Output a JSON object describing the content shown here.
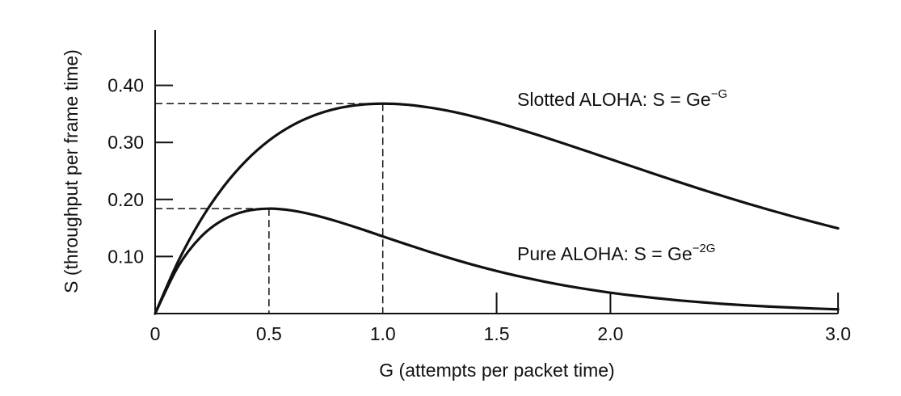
{
  "chart_data": {
    "type": "line",
    "title": "",
    "xlabel": "G (attempts per packet time)",
    "ylabel": "S (throughput per frame time)",
    "xlim": [
      0,
      3.0
    ],
    "ylim": [
      0,
      0.5
    ],
    "x_ticks": [
      {
        "value": 0,
        "label": "0"
      },
      {
        "value": 0.5,
        "label": "0.5"
      },
      {
        "value": 1.0,
        "label": "1.0"
      },
      {
        "value": 1.5,
        "label": "1.5"
      },
      {
        "value": 2.0,
        "label": "2.0"
      },
      {
        "value": 3.0,
        "label": "3.0"
      }
    ],
    "y_ticks": [
      {
        "value": 0.1,
        "label": "0.10"
      },
      {
        "value": 0.2,
        "label": "0.20"
      },
      {
        "value": 0.3,
        "label": "0.30"
      },
      {
        "value": 0.4,
        "label": "0.40"
      }
    ],
    "grid": false,
    "line_color": "#111111",
    "x": [
      0,
      0.1,
      0.2,
      0.3,
      0.4,
      0.5,
      0.6,
      0.7,
      0.8,
      0.9,
      1.0,
      1.1,
      1.2,
      1.3,
      1.4,
      1.5,
      1.6,
      1.7,
      1.8,
      1.9,
      2.0,
      2.1,
      2.2,
      2.3,
      2.4,
      2.5,
      2.6,
      2.7,
      2.8,
      2.9,
      3.0
    ],
    "series": [
      {
        "name": "Slotted ALOHA",
        "label_main": "Slotted ALOHA: S = Ge",
        "label_sup": "−G",
        "values": [
          0,
          0.0905,
          0.1637,
          0.2222,
          0.2681,
          0.3033,
          0.3293,
          0.3476,
          0.3595,
          0.3659,
          0.3679,
          0.3662,
          0.3614,
          0.3543,
          0.3452,
          0.3347,
          0.323,
          0.3106,
          0.2975,
          0.2842,
          0.2707,
          0.2572,
          0.2438,
          0.2306,
          0.2177,
          0.2052,
          0.1931,
          0.1815,
          0.1703,
          0.1596,
          0.1494
        ],
        "peak": {
          "x": 1.0,
          "y": 0.368
        }
      },
      {
        "name": "Pure ALOHA",
        "label_main": "Pure ALOHA: S = Ge",
        "label_sup": "−2G",
        "values": [
          0,
          0.0819,
          0.1341,
          0.1646,
          0.1797,
          0.1839,
          0.1807,
          0.1726,
          0.1615,
          0.1488,
          0.1353,
          0.1219,
          0.1089,
          0.0966,
          0.0851,
          0.0747,
          0.0652,
          0.0568,
          0.0492,
          0.0426,
          0.0366,
          0.0315,
          0.0271,
          0.0231,
          0.0198,
          0.0168,
          0.0143,
          0.0122,
          0.0104,
          0.0088,
          0.0074
        ],
        "peak": {
          "x": 0.5,
          "y": 0.184
        }
      }
    ]
  }
}
